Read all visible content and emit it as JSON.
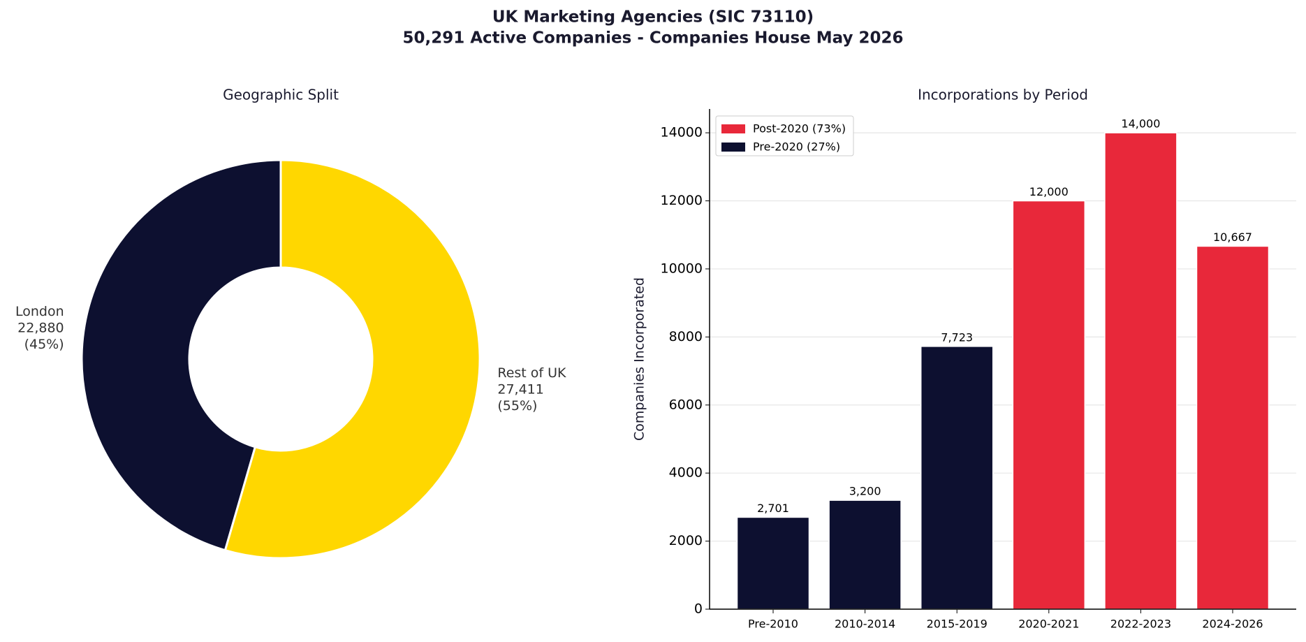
{
  "title_lines": [
    "UK Marketing Agencies (SIC 73110)",
    "50,291 Active Companies - Companies House May 2026"
  ],
  "chart_data": [
    {
      "type": "pie",
      "title": "Geographic Split",
      "donut": true,
      "categories": [
        "London",
        "Rest of UK"
      ],
      "values": [
        22880,
        27411
      ],
      "value_labels": [
        "22,880",
        "27,411"
      ],
      "percent_labels": [
        "(45%)",
        "(55%)"
      ],
      "colors": [
        "#0d1030",
        "#ffd700"
      ]
    },
    {
      "type": "bar",
      "title": "Incorporations by Period",
      "ylabel": "Companies Incorporated",
      "categories": [
        "Pre-2010",
        "2010-2014",
        "2015-2019",
        "2020-2021",
        "2022-2023",
        "2024-2026"
      ],
      "series": [
        {
          "name": "Post-2020 (73%)",
          "color": "#e8283a",
          "values": [
            null,
            null,
            null,
            12000,
            14000,
            10667
          ],
          "value_labels": [
            null,
            null,
            null,
            "12,000",
            "14,000",
            "10,667"
          ]
        },
        {
          "name": "Pre-2020 (27%)",
          "color": "#0d1030",
          "values": [
            2701,
            3200,
            7723,
            null,
            null,
            null
          ],
          "value_labels": [
            "2,701",
            "3,200",
            "7,723",
            null,
            null,
            null
          ]
        }
      ],
      "ylim": [
        0,
        14700
      ],
      "yticks": [
        0,
        2000,
        4000,
        6000,
        8000,
        10000,
        12000,
        14000
      ],
      "grid": true,
      "legend": "upper left"
    }
  ]
}
